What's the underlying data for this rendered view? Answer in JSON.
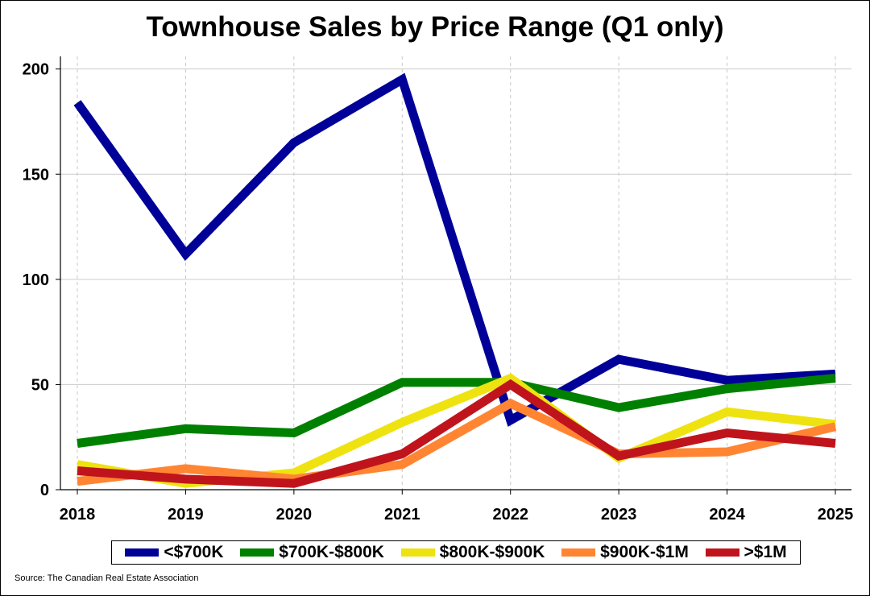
{
  "chart_data": {
    "type": "line",
    "title": "Townhouse Sales by Price Range (Q1 only)",
    "xlabel": "",
    "ylabel": "",
    "categories": [
      "2018",
      "2019",
      "2020",
      "2021",
      "2022",
      "2023",
      "2024",
      "2025"
    ],
    "ylim": [
      0,
      206
    ],
    "yticks": [
      0,
      50,
      100,
      150,
      200
    ],
    "grid": true,
    "legend_position": "bottom",
    "series": [
      {
        "name": "<$700K",
        "color": "#000099",
        "values": [
          184,
          112,
          165,
          195,
          33,
          62,
          52,
          55
        ]
      },
      {
        "name": "$700K-$800K",
        "color": "#008000",
        "values": [
          22,
          29,
          27,
          51,
          51,
          39,
          48,
          53
        ]
      },
      {
        "name": "$800K-$900K",
        "color": "#eee310",
        "values": [
          12,
          3,
          8,
          32,
          53,
          15,
          37,
          31
        ]
      },
      {
        "name": "$900K-$1M",
        "color": "#ff8533",
        "values": [
          4,
          10,
          5,
          12,
          41,
          17,
          18,
          30
        ]
      },
      {
        "name": ">$1M",
        "color": "#c0141c",
        "values": [
          9,
          5,
          3,
          17,
          50,
          16,
          27,
          22
        ]
      }
    ],
    "source": "Source: The Canadian Real Estate Association"
  }
}
